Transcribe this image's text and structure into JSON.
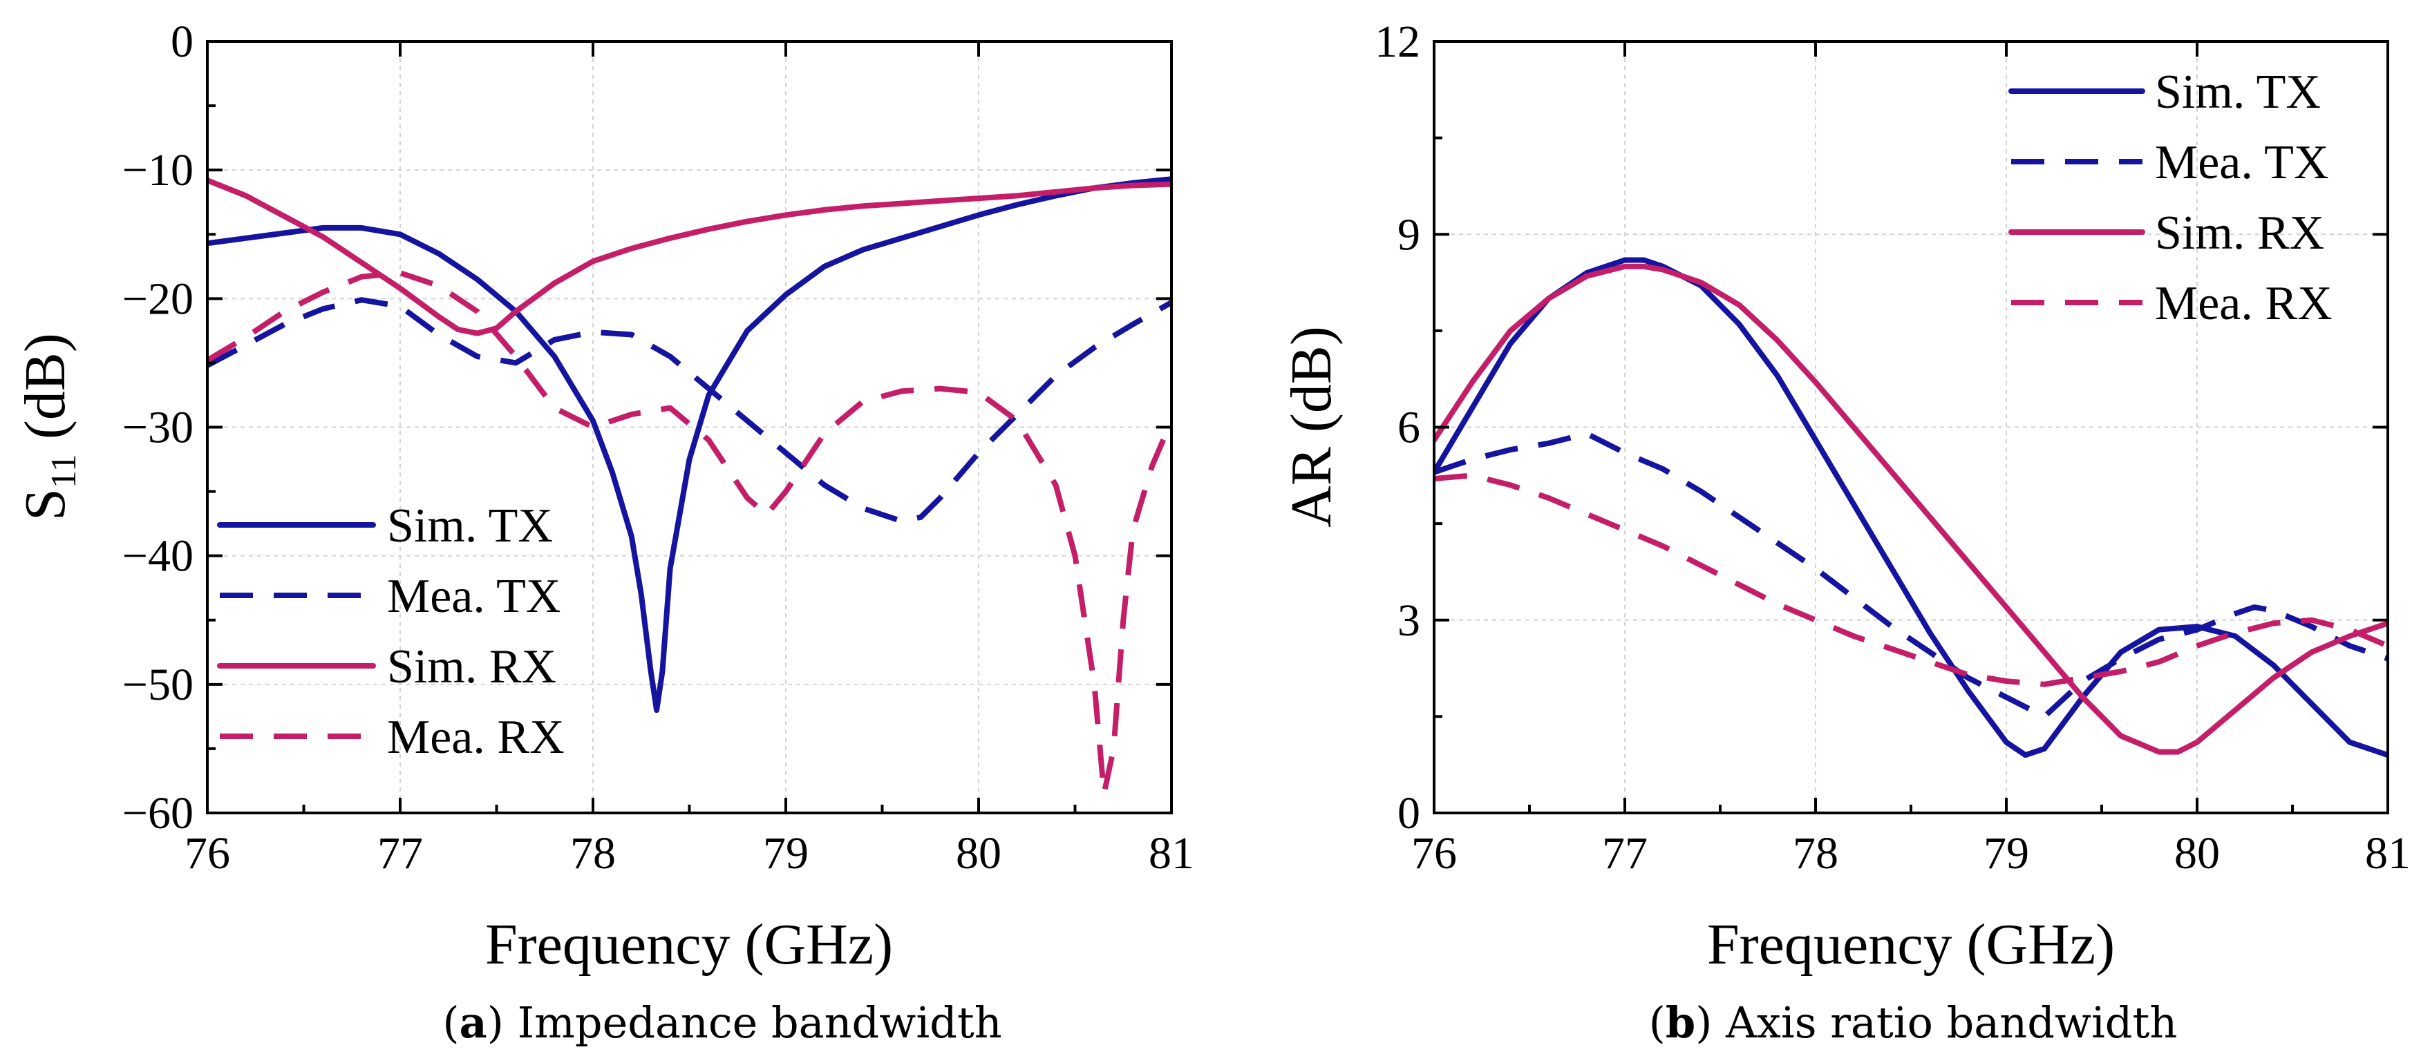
{
  "colors": {
    "tx": "#1414a0",
    "rx": "#c41e68"
  },
  "captions": [
    {
      "letter": "a",
      "text": "Impedance bandwidth"
    },
    {
      "letter": "b",
      "text": "Axis ratio bandwidth"
    }
  ],
  "chart_data": [
    {
      "type": "line",
      "panel": "a",
      "xlabel": "Frequency (GHz)",
      "ylabel_main": "S",
      "ylabel_sub": "11",
      "ylabel_unit": "(dB)",
      "xlim": [
        76,
        81
      ],
      "ylim": [
        -60,
        0
      ],
      "xticks": [
        "76",
        "77",
        "78",
        "79",
        "80",
        "81"
      ],
      "xtick_values": [
        76,
        77,
        78,
        79,
        80,
        81
      ],
      "yticks": [
        "0",
        "−10",
        "−20",
        "−30",
        "−40",
        "−50",
        "−60"
      ],
      "ytick_values": [
        0,
        -10,
        -20,
        -30,
        -40,
        -50,
        -60
      ],
      "grid": true,
      "legend_position": "bottom-left",
      "series": [
        {
          "name": "Sim. TX",
          "color": "#1414a0",
          "style": "solid",
          "x": [
            76,
            76.2,
            76.4,
            76.6,
            76.8,
            77.0,
            77.2,
            77.4,
            77.6,
            77.8,
            78.0,
            78.1,
            78.2,
            78.25,
            78.3,
            78.33,
            78.36,
            78.4,
            78.5,
            78.6,
            78.8,
            79.0,
            79.2,
            79.4,
            79.6,
            79.8,
            80.0,
            80.2,
            80.4,
            80.6,
            80.8,
            81.0
          ],
          "y": [
            -15.7,
            -15.3,
            -14.9,
            -14.5,
            -14.5,
            -15.0,
            -16.5,
            -18.5,
            -21.0,
            -24.5,
            -29.5,
            -33.5,
            -38.5,
            -43.0,
            -49.0,
            -52.0,
            -49.0,
            -41.0,
            -32.5,
            -27.5,
            -22.5,
            -19.7,
            -17.5,
            -16.2,
            -15.3,
            -14.4,
            -13.5,
            -12.7,
            -12.0,
            -11.4,
            -11.0,
            -10.7
          ]
        },
        {
          "name": "Mea. TX",
          "color": "#1414a0",
          "style": "dashed",
          "x": [
            76,
            76.2,
            76.4,
            76.6,
            76.8,
            77.0,
            77.2,
            77.4,
            77.6,
            77.8,
            78.0,
            78.2,
            78.4,
            78.6,
            78.8,
            79.0,
            79.2,
            79.4,
            79.6,
            79.7,
            79.8,
            80.0,
            80.2,
            80.4,
            80.6,
            80.8,
            81.0
          ],
          "y": [
            -25.2,
            -23.6,
            -22.0,
            -20.8,
            -20.1,
            -20.6,
            -22.8,
            -24.5,
            -25.0,
            -23.2,
            -22.6,
            -22.8,
            -24.5,
            -27.0,
            -29.5,
            -32.0,
            -34.5,
            -36.3,
            -37.3,
            -37.0,
            -35.5,
            -32.0,
            -29.0,
            -26.0,
            -23.8,
            -22.0,
            -20.3
          ]
        },
        {
          "name": "Sim. RX",
          "color": "#c41e68",
          "style": "solid",
          "x": [
            76,
            76.2,
            76.4,
            76.6,
            76.8,
            77.0,
            77.2,
            77.3,
            77.4,
            77.5,
            77.6,
            77.8,
            78.0,
            78.2,
            78.4,
            78.6,
            78.8,
            79.0,
            79.2,
            79.4,
            79.6,
            79.8,
            80.0,
            80.2,
            80.4,
            80.6,
            80.8,
            81.0
          ],
          "y": [
            -10.8,
            -12.0,
            -13.6,
            -15.2,
            -17.2,
            -19.2,
            -21.4,
            -22.4,
            -22.7,
            -22.3,
            -21.0,
            -18.8,
            -17.1,
            -16.1,
            -15.3,
            -14.6,
            -14.0,
            -13.5,
            -13.1,
            -12.8,
            -12.6,
            -12.4,
            -12.2,
            -12.0,
            -11.7,
            -11.4,
            -11.2,
            -11.1
          ]
        },
        {
          "name": "Mea. RX",
          "color": "#c41e68",
          "style": "dashed",
          "x": [
            76,
            76.2,
            76.4,
            76.6,
            76.8,
            77.0,
            77.2,
            77.4,
            77.6,
            77.8,
            78.0,
            78.2,
            78.4,
            78.6,
            78.8,
            78.9,
            79.0,
            79.2,
            79.4,
            79.6,
            79.8,
            80.0,
            80.2,
            80.4,
            80.5,
            80.6,
            80.65,
            80.7,
            80.75,
            80.8,
            80.9,
            81.0
          ],
          "y": [
            -24.8,
            -23.0,
            -21.0,
            -19.5,
            -18.3,
            -18.0,
            -19.0,
            -21.0,
            -24.5,
            -28.5,
            -30.0,
            -29.0,
            -28.5,
            -31.0,
            -35.5,
            -36.8,
            -35.0,
            -30.5,
            -28.0,
            -27.2,
            -27.0,
            -27.3,
            -29.5,
            -34.5,
            -40.0,
            -50.0,
            -58.5,
            -55.0,
            -45.0,
            -38.0,
            -33.0,
            -29.5
          ]
        }
      ]
    },
    {
      "type": "line",
      "panel": "b",
      "xlabel": "Frequency (GHz)",
      "ylabel": "AR (dB)",
      "xlim": [
        76,
        81
      ],
      "ylim": [
        0,
        12
      ],
      "xticks": [
        "76",
        "77",
        "78",
        "79",
        "80",
        "81"
      ],
      "xtick_values": [
        76,
        77,
        78,
        79,
        80,
        81
      ],
      "yticks": [
        "0",
        "3",
        "6",
        "9",
        "12"
      ],
      "ytick_values": [
        0,
        3,
        6,
        9,
        12
      ],
      "grid": true,
      "legend_position": "top-right",
      "series": [
        {
          "name": "Sim. TX",
          "color": "#1414a0",
          "style": "solid",
          "x": [
            76,
            76.2,
            76.4,
            76.6,
            76.8,
            77.0,
            77.1,
            77.2,
            77.4,
            77.6,
            77.8,
            78.0,
            78.2,
            78.4,
            78.6,
            78.8,
            79.0,
            79.1,
            79.2,
            79.4,
            79.6,
            79.8,
            80.0,
            80.2,
            80.4,
            80.6,
            80.8,
            81.0
          ],
          "y": [
            5.3,
            6.3,
            7.3,
            8.0,
            8.4,
            8.6,
            8.6,
            8.5,
            8.2,
            7.6,
            6.8,
            5.8,
            4.8,
            3.8,
            2.8,
            1.9,
            1.1,
            0.9,
            1.0,
            1.8,
            2.5,
            2.85,
            2.9,
            2.75,
            2.3,
            1.7,
            1.1,
            0.9
          ]
        },
        {
          "name": "Mea. TX",
          "color": "#1414a0",
          "style": "dashed",
          "x": [
            76,
            76.2,
            76.4,
            76.6,
            76.8,
            77.0,
            77.2,
            77.4,
            77.6,
            77.8,
            78.0,
            78.2,
            78.4,
            78.6,
            78.8,
            79.0,
            79.2,
            79.4,
            79.6,
            79.8,
            80.0,
            80.2,
            80.3,
            80.4,
            80.6,
            80.8,
            81.0
          ],
          "y": [
            5.3,
            5.5,
            5.65,
            5.75,
            5.9,
            5.6,
            5.35,
            5.0,
            4.6,
            4.2,
            3.8,
            3.35,
            2.9,
            2.5,
            2.1,
            1.8,
            1.5,
            2.05,
            2.4,
            2.7,
            2.85,
            3.1,
            3.2,
            3.15,
            2.9,
            2.6,
            2.4
          ]
        },
        {
          "name": "Sim. RX",
          "color": "#c41e68",
          "style": "solid",
          "x": [
            76,
            76.2,
            76.4,
            76.6,
            76.8,
            77.0,
            77.1,
            77.2,
            77.4,
            77.6,
            77.8,
            78.0,
            78.2,
            78.4,
            78.6,
            78.8,
            79.0,
            79.2,
            79.4,
            79.6,
            79.8,
            79.9,
            80.0,
            80.2,
            80.4,
            80.6,
            80.8,
            81.0
          ],
          "y": [
            5.8,
            6.7,
            7.5,
            8.0,
            8.35,
            8.5,
            8.5,
            8.45,
            8.25,
            7.9,
            7.35,
            6.7,
            6.0,
            5.3,
            4.6,
            3.9,
            3.2,
            2.5,
            1.8,
            1.2,
            0.95,
            0.95,
            1.1,
            1.6,
            2.1,
            2.5,
            2.75,
            2.95
          ]
        },
        {
          "name": "Mea. RX",
          "color": "#c41e68",
          "style": "dashed",
          "x": [
            76,
            76.2,
            76.4,
            76.6,
            76.8,
            77.0,
            77.2,
            77.4,
            77.6,
            77.8,
            78.0,
            78.2,
            78.4,
            78.6,
            78.8,
            79.0,
            79.2,
            79.4,
            79.6,
            79.8,
            80.0,
            80.2,
            80.4,
            80.6,
            80.8,
            81.0
          ],
          "y": [
            5.2,
            5.25,
            5.1,
            4.9,
            4.65,
            4.4,
            4.15,
            3.85,
            3.55,
            3.25,
            3.0,
            2.75,
            2.55,
            2.35,
            2.15,
            2.05,
            2.0,
            2.1,
            2.2,
            2.35,
            2.6,
            2.8,
            2.95,
            3.0,
            2.85,
            2.6
          ]
        }
      ]
    }
  ]
}
